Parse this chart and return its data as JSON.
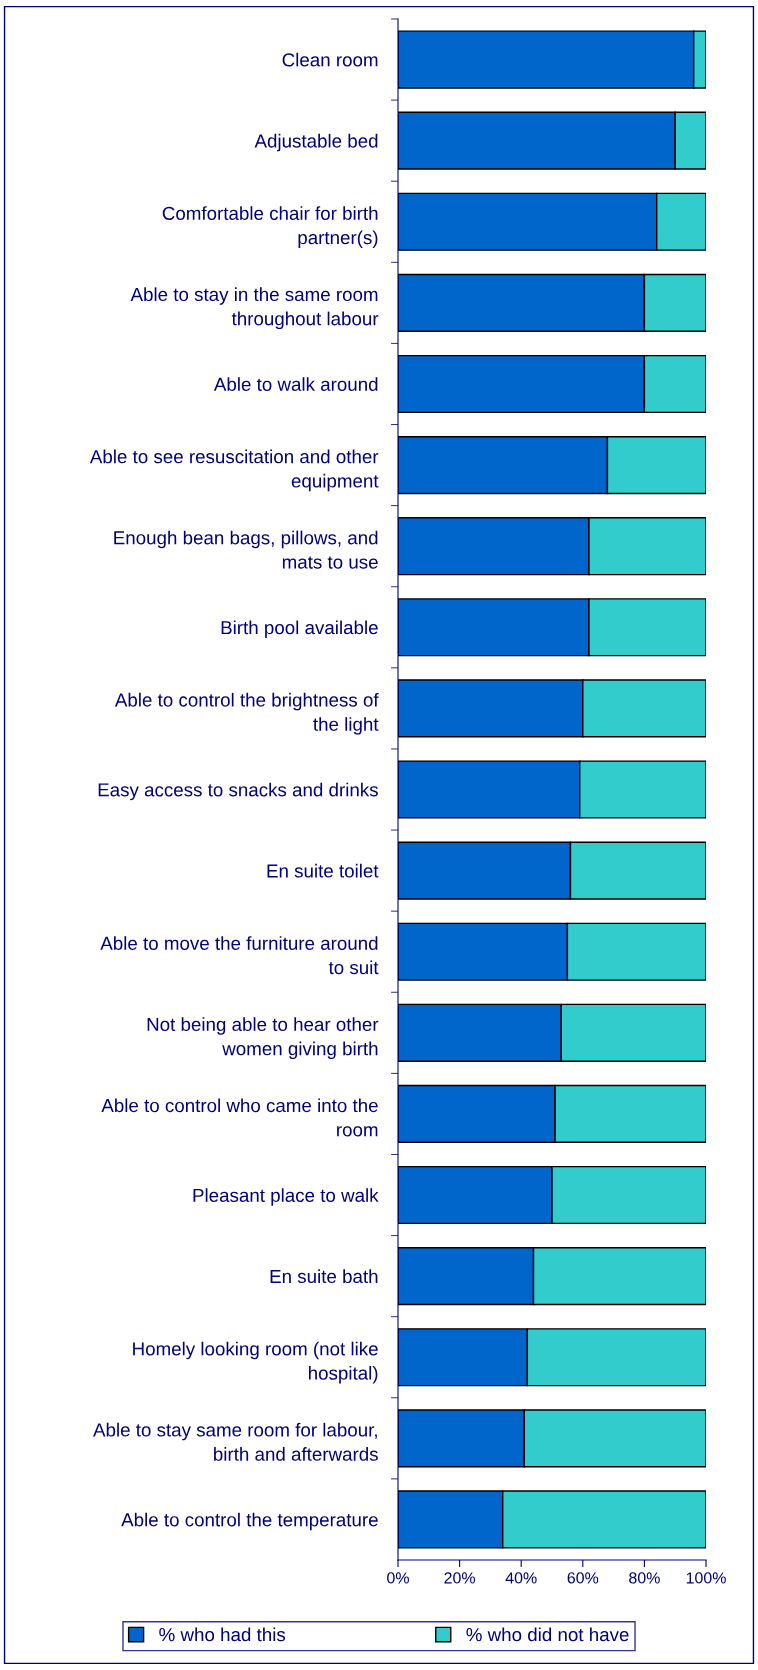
{
  "chart_data": {
    "type": "bar",
    "orientation": "horizontal",
    "stacked": true,
    "categories": [
      "Clean room",
      "Adjustable bed",
      "Comfortable chair for birth\npartner(s)",
      "Able to stay in the same room\nthroughout labour",
      "Able to walk around",
      "Able to see resuscitation and other\nequipment",
      "Enough bean bags, pillows, and\nmats to use",
      "Birth pool available",
      "Able to control the brightness of\nthe light",
      "Easy access to snacks and drinks",
      "En suite toilet",
      "Able to move the furniture around\nto suit",
      "Not being able to hear other\nwomen giving birth",
      "Able to control who came into the\nroom",
      "Pleasant place to walk",
      "En suite bath",
      "Homely looking room (not like\nhospital)",
      "Able to stay same room for labour,\nbirth and afterwards",
      "Able to control the temperature"
    ],
    "series": [
      {
        "name": "% who had this",
        "color": "#0066cc",
        "values": [
          96,
          90,
          84,
          80,
          80,
          68,
          62,
          62,
          60,
          59,
          56,
          55,
          53,
          51,
          50,
          44,
          42,
          41,
          34
        ]
      },
      {
        "name": "% who did not have",
        "color": "#33cccc",
        "values": [
          4,
          10,
          16,
          20,
          20,
          32,
          38,
          38,
          40,
          41,
          44,
          45,
          47,
          49,
          50,
          56,
          58,
          59,
          66
        ]
      }
    ],
    "xlim": [
      0,
      100
    ],
    "xticks": [
      {
        "value": 0,
        "label": "0%"
      },
      {
        "value": 20,
        "label": "20%"
      },
      {
        "value": 40,
        "label": "40%"
      },
      {
        "value": 60,
        "label": "60%"
      },
      {
        "value": 80,
        "label": "80%"
      },
      {
        "value": 100,
        "label": "100%"
      }
    ],
    "grid": false,
    "legend": "bottom"
  }
}
